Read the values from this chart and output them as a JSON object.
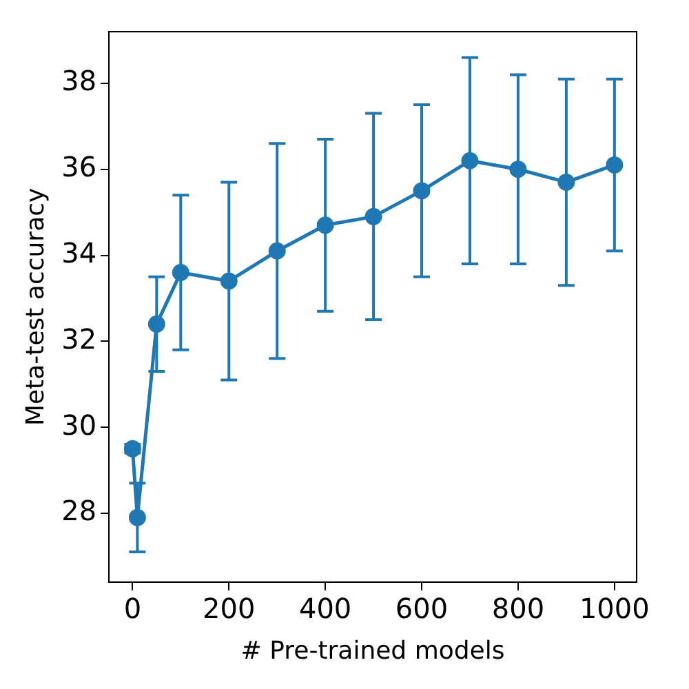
{
  "chart_data": {
    "type": "line",
    "xlabel": "# Pre-trained models",
    "ylabel": "Meta-test accuracy",
    "x": [
      0,
      10,
      50,
      100,
      200,
      300,
      400,
      500,
      600,
      700,
      800,
      900,
      1000
    ],
    "series": [
      {
        "color": "#1f77b4",
        "values": [
          29.5,
          27.9,
          32.4,
          33.6,
          33.4,
          34.1,
          34.7,
          34.9,
          35.5,
          36.2,
          36.0,
          35.7,
          36.1
        ],
        "errors": [
          [
            29.4,
            29.6
          ],
          [
            27.1,
            28.7
          ],
          [
            31.3,
            33.5
          ],
          [
            31.8,
            35.4
          ],
          [
            31.1,
            35.7
          ],
          [
            31.6,
            36.6
          ],
          [
            32.7,
            36.7
          ],
          [
            32.5,
            37.3
          ],
          [
            33.5,
            37.5
          ],
          [
            33.8,
            38.6
          ],
          [
            33.8,
            38.2
          ],
          [
            33.3,
            38.1
          ],
          [
            34.1,
            38.1
          ]
        ]
      }
    ],
    "xlim": [
      -49,
      1046
    ],
    "ylim": [
      26.4,
      39.2
    ],
    "xticks": [
      0,
      200,
      400,
      600,
      800,
      1000
    ],
    "yticks": [
      28,
      30,
      32,
      34,
      36,
      38
    ],
    "marker": "circle",
    "grid": false,
    "legend": false
  }
}
